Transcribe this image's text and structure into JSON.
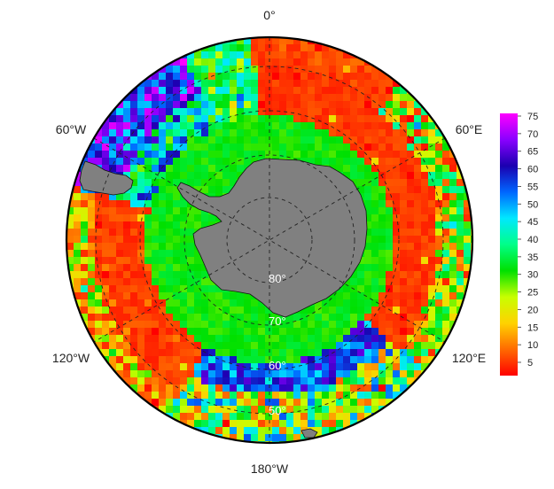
{
  "map": {
    "projection": "south-polar-stereographic",
    "longitude_labels": {
      "top": "0°",
      "upper_left": "60°W",
      "upper_right": "60°E",
      "lower_left": "120°W",
      "lower_right": "120°E",
      "bottom": "180°W"
    },
    "latitude_labels": [
      "80°",
      "70°",
      "60°",
      "50°"
    ],
    "land_color": "#808080",
    "gridline_style": "dashed"
  },
  "colorbar": {
    "ticks": [
      "75",
      "70",
      "65",
      "60",
      "55",
      "50",
      "45",
      "40",
      "35",
      "30",
      "25",
      "20",
      "15",
      "10",
      "5"
    ],
    "range": [
      0,
      75
    ],
    "colors": [
      "#ff0000",
      "#ff6a00",
      "#ffd200",
      "#c8ff00",
      "#00e000",
      "#00ff88",
      "#00e8ff",
      "#0066ff",
      "#1b00b0",
      "#8a00ff",
      "#ff00ff"
    ]
  }
}
